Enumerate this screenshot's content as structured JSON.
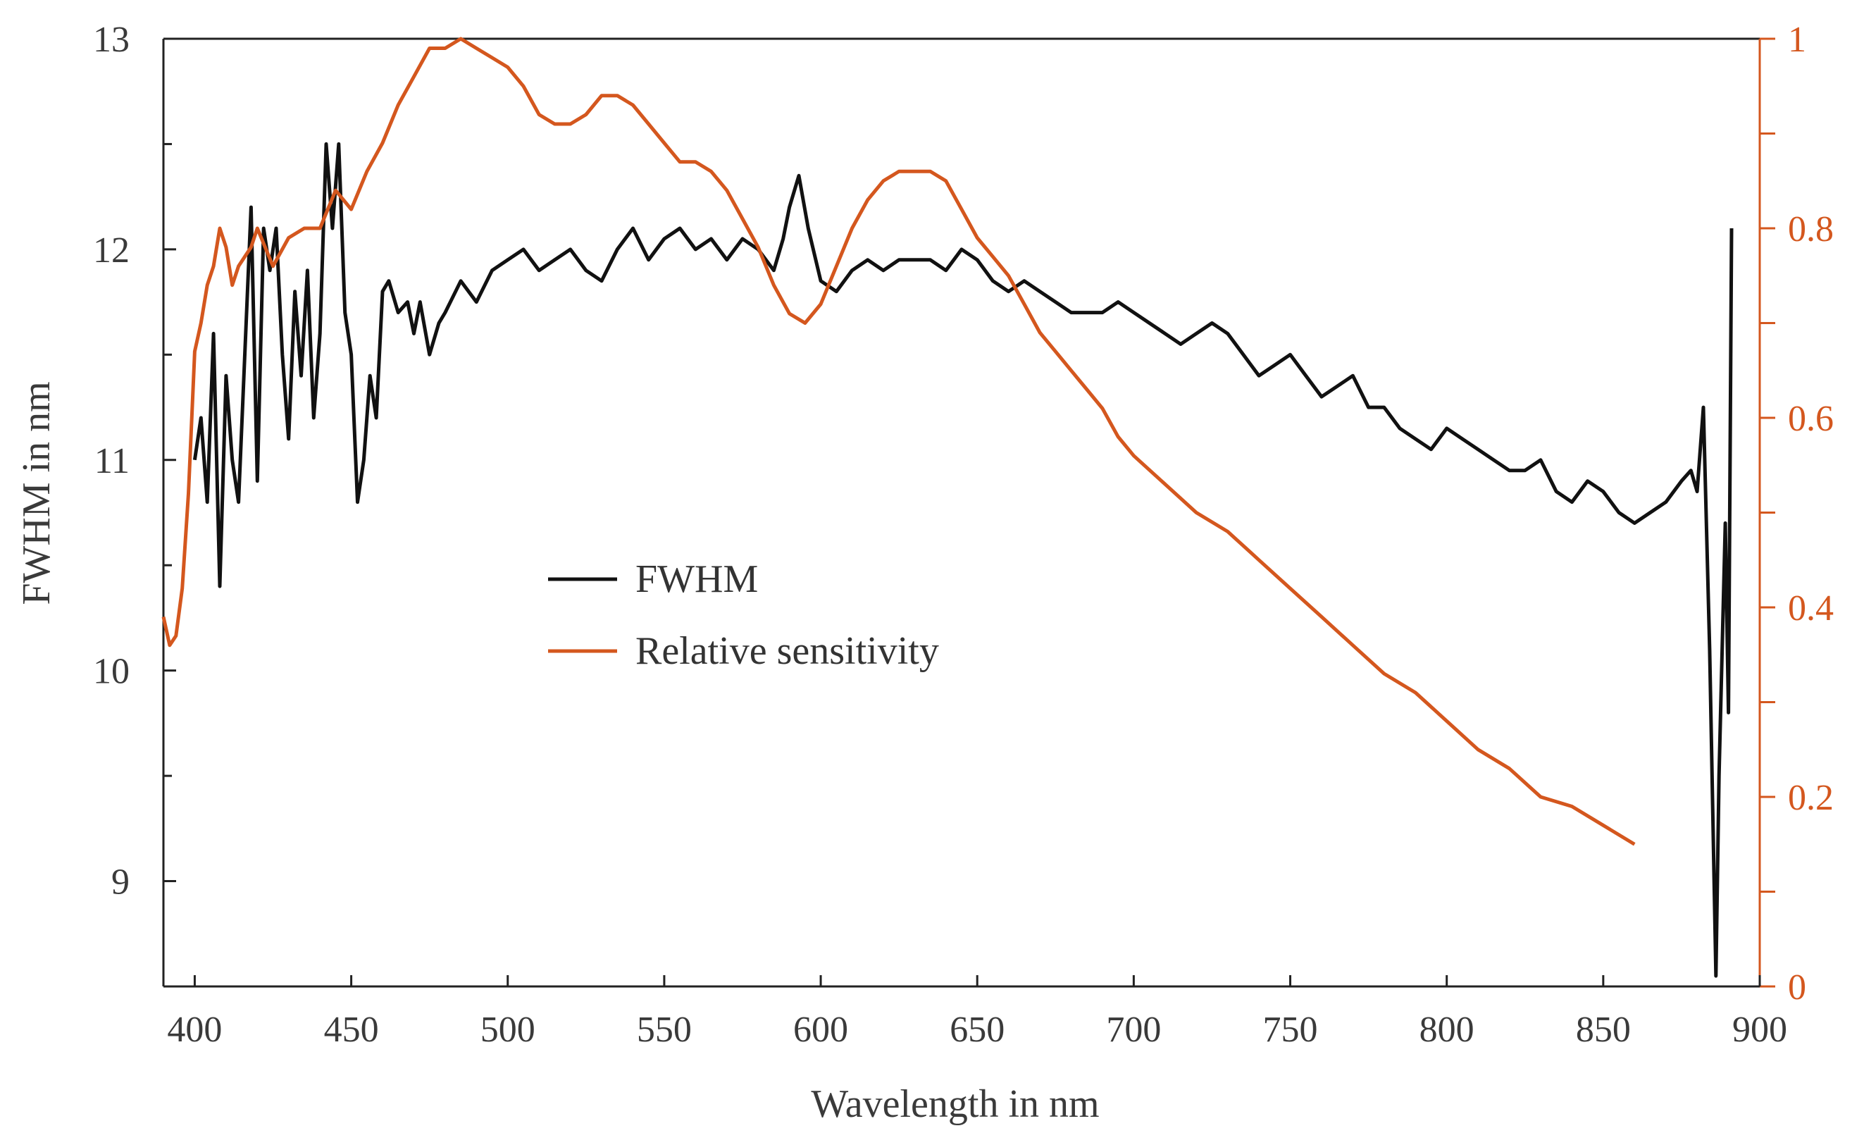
{
  "chart_data": {
    "type": "line",
    "title": "",
    "xlabel": "Wavelength in nm",
    "ylabel": "FWHM in nm",
    "y2label": "",
    "xlim": [
      390,
      900
    ],
    "ylim": [
      8.5,
      13
    ],
    "y2lim": [
      0,
      1
    ],
    "grid": false,
    "legend_position": "center-left",
    "x_ticks": [
      400,
      450,
      500,
      550,
      600,
      650,
      700,
      750,
      800,
      850,
      900
    ],
    "x_tick_labels": [
      "400",
      "450",
      "500",
      "550",
      "600",
      "650",
      "700",
      "750",
      "800",
      "850",
      "900"
    ],
    "y_ticks": [
      9,
      10,
      11,
      12,
      13
    ],
    "y_tick_labels": [
      "9",
      "10",
      "11",
      "12",
      "13"
    ],
    "y2_ticks": [
      0,
      0.1,
      0.2,
      0.3,
      0.4,
      0.5,
      0.6,
      0.7,
      0.8,
      0.9,
      1.0
    ],
    "y2_tick_labels": [
      "0",
      "",
      "0.2",
      "",
      "0.4",
      "",
      "0.6",
      "",
      "0.8",
      "",
      "1"
    ],
    "colors": {
      "fwhm": "#111111",
      "sensitivity": "#d4571e",
      "axis": "#222222",
      "right_axis": "#d4571e"
    },
    "series": [
      {
        "name": "FWHM",
        "axis": "left",
        "x": [
          390,
          398,
          400,
          402,
          404,
          406,
          408,
          410,
          412,
          414,
          416,
          418,
          420,
          422,
          424,
          426,
          428,
          430,
          432,
          434,
          436,
          438,
          440,
          442,
          444,
          446,
          448,
          450,
          452,
          454,
          456,
          458,
          460,
          462,
          465,
          468,
          470,
          472,
          475,
          478,
          480,
          485,
          490,
          495,
          500,
          505,
          510,
          515,
          520,
          525,
          530,
          535,
          540,
          545,
          550,
          555,
          560,
          565,
          570,
          575,
          580,
          585,
          588,
          590,
          593,
          596,
          600,
          605,
          610,
          615,
          620,
          625,
          630,
          635,
          640,
          645,
          650,
          655,
          660,
          665,
          670,
          675,
          680,
          685,
          690,
          695,
          700,
          705,
          710,
          715,
          720,
          725,
          730,
          735,
          740,
          745,
          750,
          755,
          760,
          765,
          770,
          775,
          780,
          785,
          790,
          795,
          800,
          805,
          810,
          815,
          820,
          825,
          830,
          835,
          840,
          845,
          850,
          855,
          860,
          865,
          870,
          875,
          878,
          880,
          882,
          884,
          886,
          887,
          889,
          890,
          891
        ],
        "values": [
          null,
          null,
          11.0,
          11.2,
          10.8,
          11.6,
          10.4,
          11.4,
          11.0,
          10.8,
          11.5,
          12.2,
          10.9,
          12.1,
          11.9,
          12.1,
          11.5,
          11.1,
          11.8,
          11.4,
          11.9,
          11.2,
          11.6,
          12.5,
          12.1,
          12.5,
          11.7,
          11.5,
          10.8,
          11.0,
          11.4,
          11.2,
          11.8,
          11.85,
          11.7,
          11.75,
          11.6,
          11.75,
          11.5,
          11.65,
          11.7,
          11.85,
          11.75,
          11.9,
          11.95,
          12.0,
          11.9,
          11.95,
          12.0,
          11.9,
          11.85,
          12.0,
          12.1,
          11.95,
          12.05,
          12.1,
          12.0,
          12.05,
          11.95,
          12.05,
          12.0,
          11.9,
          12.05,
          12.2,
          12.35,
          12.1,
          11.85,
          11.8,
          11.9,
          11.95,
          11.9,
          11.95,
          11.95,
          11.95,
          11.9,
          12.0,
          11.95,
          11.85,
          11.8,
          11.85,
          11.8,
          11.75,
          11.7,
          11.7,
          11.7,
          11.75,
          11.7,
          11.65,
          11.6,
          11.55,
          11.6,
          11.65,
          11.6,
          11.5,
          11.4,
          11.45,
          11.5,
          11.4,
          11.3,
          11.35,
          11.4,
          11.25,
          11.25,
          11.15,
          11.1,
          11.05,
          11.15,
          11.1,
          11.05,
          11.0,
          10.95,
          10.95,
          11.0,
          10.85,
          10.8,
          10.9,
          10.85,
          10.75,
          10.7,
          10.75,
          10.8,
          10.9,
          10.95,
          10.85,
          11.25,
          10.1,
          8.55,
          9.5,
          10.7,
          9.8,
          12.1
        ]
      },
      {
        "name": "Relative sensitivity",
        "axis": "right",
        "x": [
          390,
          392,
          394,
          396,
          398,
          400,
          402,
          404,
          406,
          408,
          410,
          412,
          414,
          416,
          418,
          420,
          425,
          430,
          435,
          440,
          445,
          450,
          455,
          460,
          465,
          470,
          475,
          480,
          485,
          490,
          495,
          500,
          505,
          510,
          515,
          520,
          525,
          530,
          535,
          540,
          545,
          550,
          555,
          560,
          565,
          570,
          575,
          580,
          585,
          590,
          595,
          600,
          605,
          610,
          615,
          620,
          625,
          630,
          635,
          640,
          645,
          650,
          655,
          660,
          665,
          670,
          675,
          680,
          685,
          690,
          695,
          700,
          710,
          720,
          730,
          740,
          750,
          760,
          770,
          780,
          790,
          800,
          810,
          820,
          830,
          840,
          850,
          860
        ],
        "values": [
          0.39,
          0.36,
          0.37,
          0.42,
          0.52,
          0.67,
          0.7,
          0.74,
          0.76,
          0.8,
          0.78,
          0.74,
          0.76,
          0.77,
          0.78,
          0.8,
          0.76,
          0.79,
          0.8,
          0.8,
          0.84,
          0.82,
          0.86,
          0.89,
          0.93,
          0.96,
          0.99,
          0.99,
          1.0,
          0.99,
          0.98,
          0.97,
          0.95,
          0.92,
          0.91,
          0.91,
          0.92,
          0.94,
          0.94,
          0.93,
          0.91,
          0.89,
          0.87,
          0.87,
          0.86,
          0.84,
          0.81,
          0.78,
          0.74,
          0.71,
          0.7,
          0.72,
          0.76,
          0.8,
          0.83,
          0.85,
          0.86,
          0.86,
          0.86,
          0.85,
          0.82,
          0.79,
          0.77,
          0.75,
          0.72,
          0.69,
          0.67,
          0.65,
          0.63,
          0.61,
          0.58,
          0.56,
          0.53,
          0.5,
          0.48,
          0.45,
          0.42,
          0.39,
          0.36,
          0.33,
          0.31,
          0.28,
          0.25,
          0.23,
          0.2,
          0.19,
          0.17,
          0.15
        ]
      }
    ]
  }
}
